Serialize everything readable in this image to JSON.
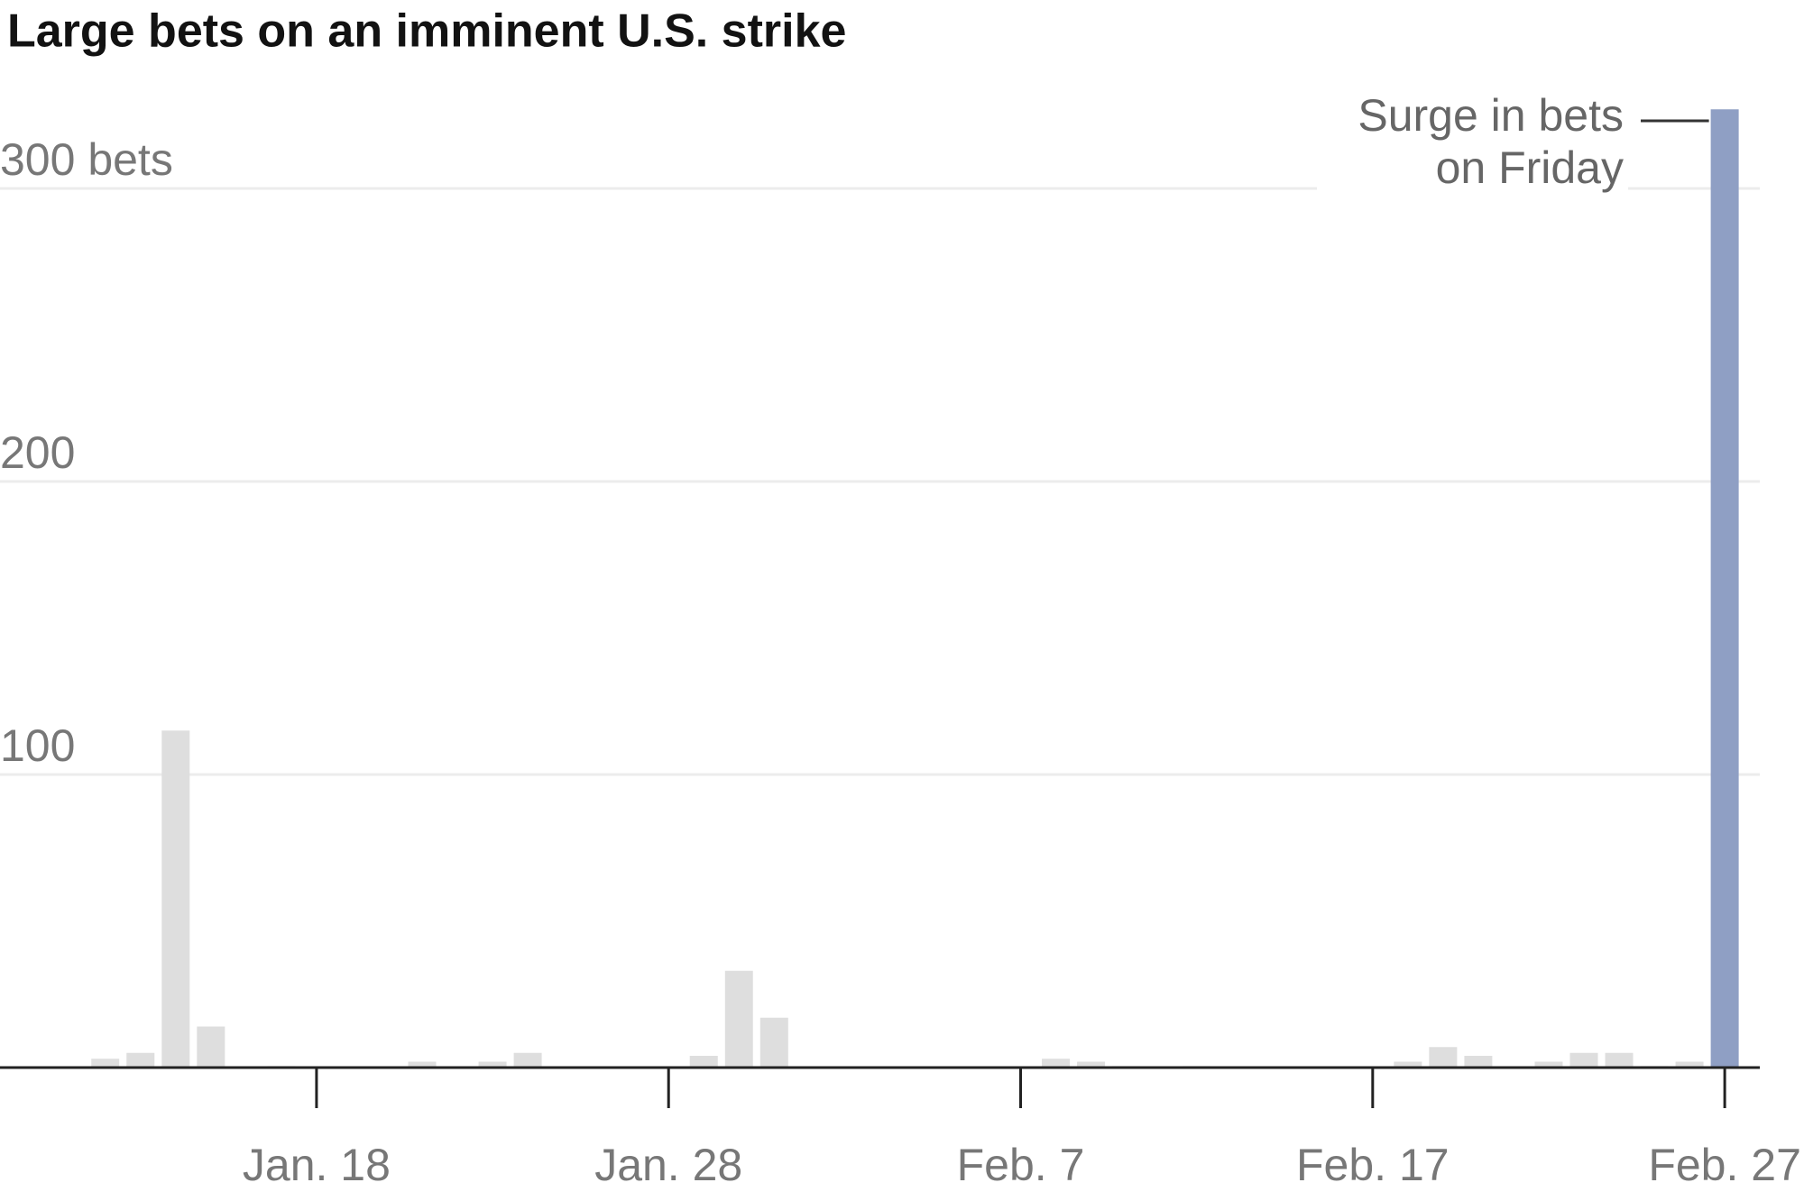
{
  "chart_data": {
    "type": "bar",
    "title": "Large bets on an imminent U.S. strike",
    "categories": [
      null,
      null,
      null,
      null,
      null,
      null,
      null,
      "Jan. 18",
      null,
      null,
      null,
      null,
      null,
      null,
      null,
      null,
      null,
      "Jan. 28",
      null,
      null,
      null,
      null,
      null,
      null,
      null,
      null,
      null,
      "Feb. 7",
      null,
      null,
      null,
      null,
      null,
      null,
      null,
      null,
      null,
      "Feb. 17",
      null,
      null,
      null,
      null,
      null,
      null,
      null,
      null,
      null,
      "Feb. 27"
    ],
    "values": [
      0.3,
      3,
      5,
      115,
      14,
      0,
      0.5,
      0,
      0,
      0,
      2,
      0,
      2,
      5,
      0,
      0,
      0,
      0,
      4,
      33,
      17,
      0,
      0,
      0,
      0,
      0,
      0,
      0,
      3,
      2,
      0.5,
      0,
      0.5,
      0,
      0,
      0,
      0,
      0,
      2,
      7,
      4,
      0,
      2,
      5,
      5,
      0.5,
      2,
      327
    ],
    "colors": [
      "#dedede",
      "#dedede",
      "#dedede",
      "#dedede",
      "#dedede",
      "#dedede",
      "#dedede",
      "#dedede",
      "#dedede",
      "#dedede",
      "#dedede",
      "#dedede",
      "#dedede",
      "#dedede",
      "#dedede",
      "#dedede",
      "#dedede",
      "#dedede",
      "#dedede",
      "#dedede",
      "#dedede",
      "#dedede",
      "#dedede",
      "#dedede",
      "#dedede",
      "#dedede",
      "#dedede",
      "#dedede",
      "#dedede",
      "#dedede",
      "#dedede",
      "#dedede",
      "#dedede",
      "#dedede",
      "#dedede",
      "#dedede",
      "#dedede",
      "#dedede",
      "#dedede",
      "#dedede",
      "#dedede",
      "#dedede",
      "#dedede",
      "#dedede",
      "#dedede",
      "#dedede",
      "#dedede",
      "#8f9fc4"
    ],
    "ylim": [
      0,
      330
    ],
    "yticks": [
      100,
      200,
      {
        "value": 300,
        "label": "300 bets"
      }
    ],
    "grid": true,
    "annotation": [
      "Surge in bets",
      "on Friday"
    ]
  }
}
